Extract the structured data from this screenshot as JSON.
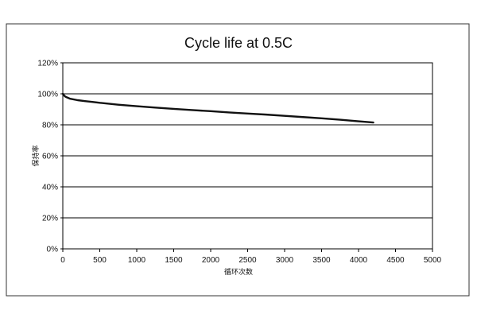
{
  "chart_data": {
    "type": "line",
    "title": "Cycle life at 0.5C",
    "xlabel": "循环次数",
    "ylabel": "保持率",
    "xlim": [
      0,
      5000
    ],
    "ylim": [
      0,
      120
    ],
    "x_ticks": [
      0,
      500,
      1000,
      1500,
      2000,
      2500,
      3000,
      3500,
      4000,
      4500,
      5000
    ],
    "x_tick_labels": [
      "0",
      "500",
      "1000",
      "1500",
      "2000",
      "2500",
      "3000",
      "3500",
      "4000",
      "4500",
      "5000"
    ],
    "y_ticks": [
      0,
      20,
      40,
      60,
      80,
      100,
      120
    ],
    "y_tick_labels": [
      "0%",
      "20%",
      "40%",
      "60%",
      "80%",
      "100%",
      "120%"
    ],
    "grid": "horizontal",
    "legend": "none",
    "series": [
      {
        "color": "#111111",
        "x": [
          0,
          25,
          50,
          100,
          200,
          300,
          400,
          500,
          750,
          1000,
          1250,
          1500,
          1750,
          2000,
          2250,
          2500,
          2750,
          3000,
          3250,
          3500,
          3750,
          4000,
          4200
        ],
        "y": [
          100,
          98.5,
          97.8,
          96.8,
          95.9,
          95.3,
          94.8,
          94.2,
          93.0,
          92.0,
          91.1,
          90.3,
          89.5,
          88.8,
          88.0,
          87.3,
          86.6,
          85.8,
          85.0,
          84.2,
          83.3,
          82.3,
          81.5
        ]
      }
    ]
  }
}
